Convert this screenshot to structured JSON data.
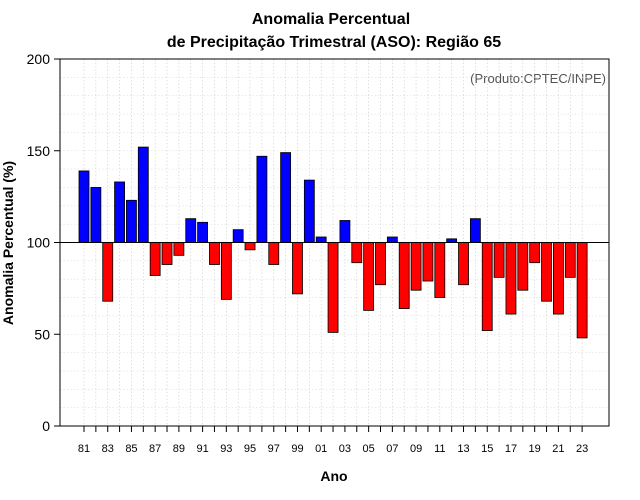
{
  "chart_data": {
    "type": "bar",
    "title": "Anomalia Percentual",
    "subtitle": "de Precipitação Trimestral (ASO): Região 65",
    "xlabel": "Ano",
    "ylabel": "Anomalia Percentual (%)",
    "credit": "(Produto:CPTEC/INPE)",
    "ylim": [
      0,
      200
    ],
    "yticks": [
      0,
      50,
      100,
      150,
      200
    ],
    "baseline": 100,
    "grid": true,
    "colors": {
      "above": "#0000ff",
      "below": "#ff0000",
      "edge": "#000000"
    },
    "categories": [
      "81",
      "82",
      "83",
      "84",
      "85",
      "86",
      "87",
      "88",
      "89",
      "90",
      "91",
      "92",
      "93",
      "94",
      "95",
      "96",
      "97",
      "98",
      "99",
      "00",
      "01",
      "02",
      "03",
      "04",
      "05",
      "06",
      "07",
      "08",
      "09",
      "10",
      "11",
      "12",
      "13",
      "14",
      "15",
      "16",
      "17",
      "18",
      "19",
      "20",
      "21",
      "22",
      "23"
    ],
    "tick_labels": [
      "81",
      "83",
      "85",
      "87",
      "89",
      "91",
      "93",
      "95",
      "97",
      "99",
      "01",
      "03",
      "05",
      "07",
      "09",
      "11",
      "13",
      "15",
      "17",
      "19",
      "21",
      "23"
    ],
    "values": [
      139,
      130,
      68,
      133,
      123,
      152,
      82,
      88,
      93,
      113,
      111,
      88,
      69,
      107,
      96,
      147,
      88,
      149,
      72,
      134,
      103,
      51,
      112,
      89,
      63,
      77,
      103,
      64,
      74,
      79,
      70,
      102,
      77,
      113,
      52,
      81,
      61,
      74,
      89,
      68,
      61,
      81,
      48
    ]
  }
}
